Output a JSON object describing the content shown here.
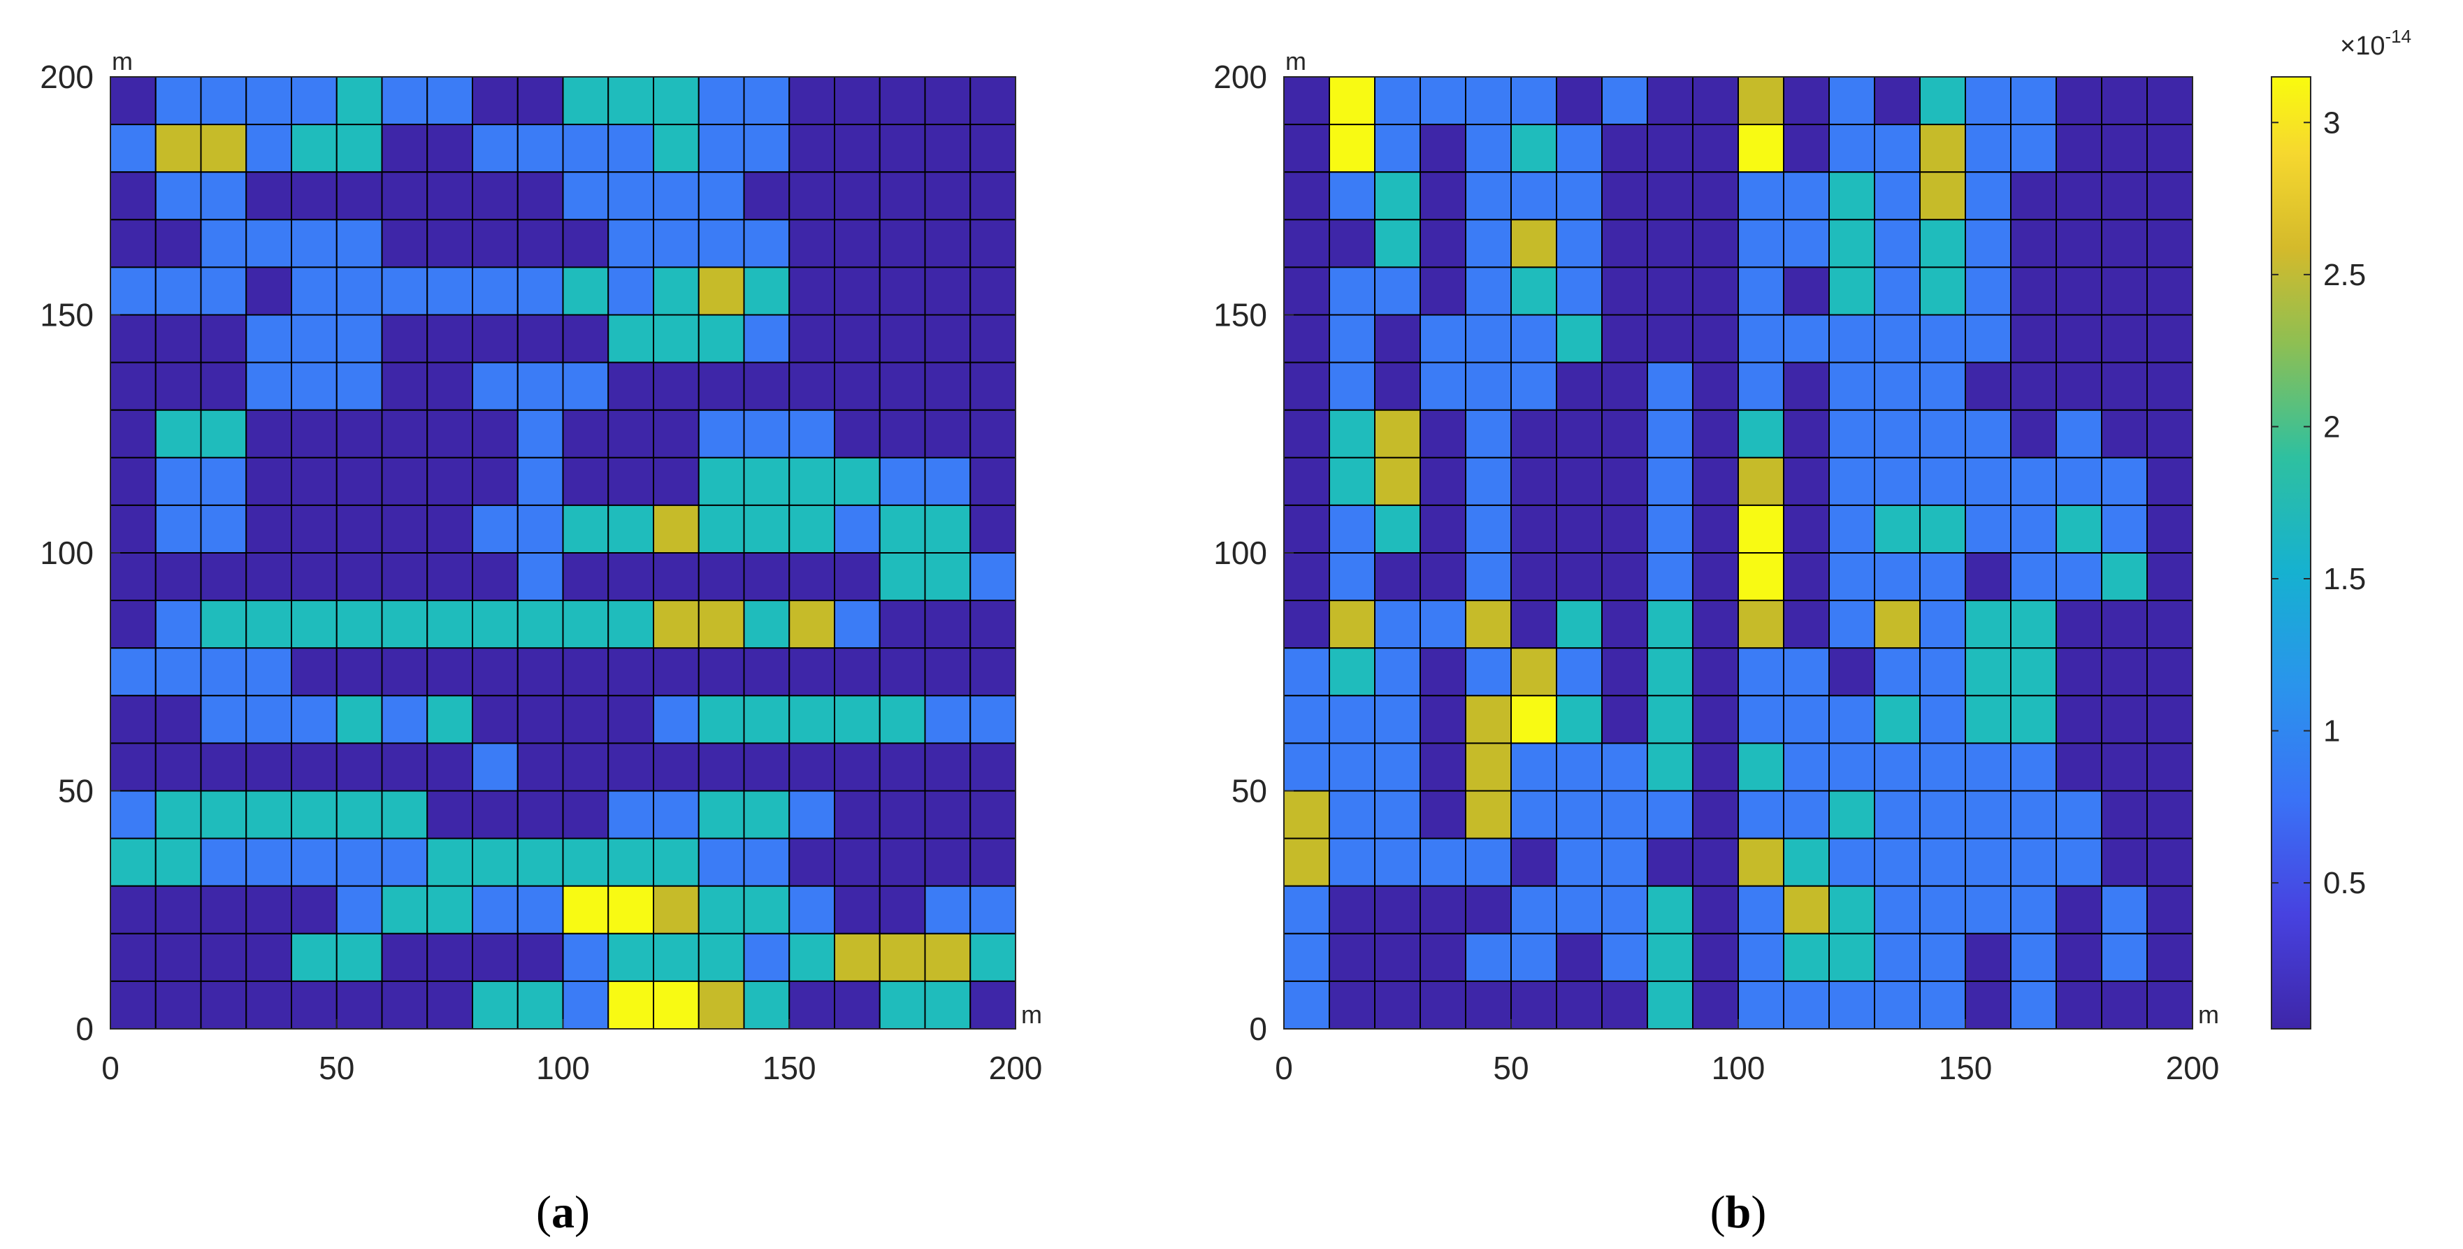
{
  "palette": [
    "#3e26a8",
    "#3b7cf6",
    "#1fbcbc",
    "#c6bb29",
    "#f8fa13"
  ],
  "colorbar": {
    "exponent_base": "×10",
    "exponent_power": "-14",
    "ticks": [
      {
        "value": 0.5,
        "label": "0.5"
      },
      {
        "value": 1,
        "label": "1"
      },
      {
        "value": 1.5,
        "label": "1.5"
      },
      {
        "value": 2,
        "label": "2"
      },
      {
        "value": 2.5,
        "label": "2.5"
      },
      {
        "value": 3,
        "label": "3"
      }
    ],
    "range": [
      0.02,
      3.15
    ]
  },
  "chart_data": [
    {
      "type": "heatmap",
      "panel_label": "a",
      "xlabel": "m",
      "ylabel": "m",
      "xlim": [
        0,
        200
      ],
      "ylim": [
        0,
        200
      ],
      "xticks": [
        0,
        50,
        100,
        150,
        200
      ],
      "yticks": [
        0,
        50,
        100,
        150,
        200
      ],
      "cell_size": 10,
      "class_values": [
        0.2,
        0.85,
        1.65,
        2.55,
        3.1
      ],
      "rows_top_to_bottom": [
        "01111211002221100000",
        "13312200111121100000",
        "01100000001111000000",
        "00111100000111100000",
        "11101111112123200000",
        "00011100000222100000",
        "00011100111000000000",
        "02200000010001110000",
        "01100000010002222110",
        "01100000112232221220",
        "00000000010000000221",
        "01222222222233231000",
        "11110000000000000000",
        "00111212000012222211",
        "00000000100000000000",
        "12222220000112210000",
        "22111112222221100000",
        "00000122114432210011",
        "00002200001222123332",
        "00000000221443200220"
      ]
    },
    {
      "type": "heatmap",
      "panel_label": "b",
      "xlabel": "m",
      "ylabel": "m",
      "xlim": [
        0,
        200
      ],
      "ylim": [
        0,
        200
      ],
      "xticks": [
        0,
        50,
        100,
        150,
        200
      ],
      "yticks": [
        0,
        50,
        100,
        150,
        200
      ],
      "cell_size": 10,
      "class_values": [
        0.2,
        0.85,
        1.65,
        2.55,
        3.1
      ],
      "rows_top_to_bottom": [
        "04111101003010211000",
        "04101210004011311000",
        "01201110001121310000",
        "00201310001121210000",
        "01101210001021210000",
        "01011120001111110000",
        "01011100101011100000",
        "02301000102011110100",
        "02301000103011111110",
        "01201000104012211210",
        "01001000104011101120",
        "03113020203013122000",
        "12101310201101122000",
        "11103420201112122000",
        "11103111202111111000",
        "31103111101121111100",
        "31111011003211111100",
        "10000111201321111010",
        "10001101201221101010",
        "10000000201111101000"
      ]
    }
  ]
}
